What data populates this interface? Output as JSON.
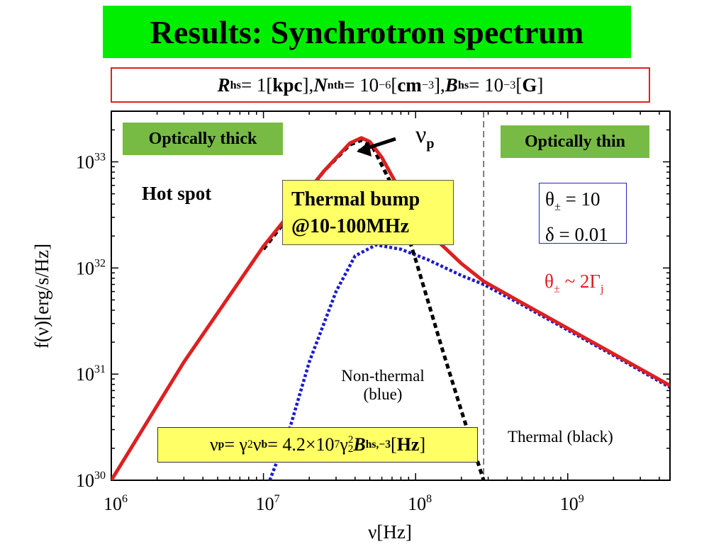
{
  "slide": {
    "title": "Results: Synchrotron spectrum"
  },
  "params": {
    "R_sym": "R",
    "R_sub": "hs",
    "R_val": " = 1[",
    "R_unit": "kpc",
    "R_close": "], ",
    "N_sym": "N",
    "N_sub": "nth",
    "N_val": " = 10",
    "N_exp": "−6",
    "N_unit_open": "[",
    "N_unit": "cm",
    "N_unit_exp": "−3",
    "N_close": "], ",
    "B_sym": "B",
    "B_sub": "hs",
    "B_val": " = 10",
    "B_exp": "−3",
    "B_unit_open": "[",
    "B_unit": "G",
    "B_close": "]"
  },
  "labels": {
    "optically_thick": "Optically thick",
    "optically_thin": "Optically thin",
    "nu_p_symbol": "ν",
    "nu_p_sub": "p",
    "hot_spot": "Hot spot",
    "thermal_bump_line1": "Thermal bump",
    "thermal_bump_line2": "@10-100MHz",
    "theta_line1_sym": "θ",
    "theta_line1_sub": "±",
    "theta_line1_val": " = 10",
    "delta_line": "δ = 0.01",
    "theta_gamma_sym": "θ",
    "theta_gamma_sub": "±",
    "theta_gamma_mid": " ~ 2Γ",
    "theta_gamma_sub2": "j",
    "nonthermal_line1": "Non-thermal",
    "nonthermal_line2": "(blue)",
    "thermal_black": "Thermal (black)"
  },
  "formula": {
    "p1": "ν",
    "p1_sub": "p",
    "p2": " = γ",
    "p2_sup": "2",
    "p3": "ν",
    "p3_sub": "b",
    "p4": " = 4.2×10",
    "p4_sup": "7",
    "p5": " γ",
    "p5_sup": "2",
    "p5_sub": "2",
    "p6": "B",
    "p6_sub": "hs,−3",
    "p7": "[",
    "p8": "Hz",
    "p9": "]"
  },
  "chart_data": {
    "type": "line",
    "xscale": "log",
    "yscale": "log",
    "xlim": [
      1000000,
      4700000000
    ],
    "ylim": [
      1e+30,
      3e+33
    ],
    "xlabel": "ν[Hz]",
    "ylabel": "f(ν)[erg/s/Hz]",
    "xticks": [
      {
        "label_base": "10",
        "label_exp": "6"
      },
      {
        "label_base": "10",
        "label_exp": "7"
      },
      {
        "label_base": "10",
        "label_exp": "8"
      },
      {
        "label_base": "10",
        "label_exp": "9"
      }
    ],
    "xtick_values": [
      1000000,
      10000000,
      100000000,
      1000000000
    ],
    "yticks": [
      {
        "label_base": "10",
        "label_exp": "30"
      },
      {
        "label_base": "10",
        "label_exp": "31"
      },
      {
        "label_base": "10",
        "label_exp": "32"
      },
      {
        "label_base": "10",
        "label_exp": "33"
      }
    ],
    "ytick_values": [
      1e+30,
      1e+31,
      1e+32,
      1e+33
    ],
    "vline_x": 280000000,
    "series": [
      {
        "color": "#dd2020",
        "style": "solid",
        "points": [
          [
            1000000,
            1e+30
          ],
          [
            3000000,
            1.3e+31
          ],
          [
            10000000,
            1.6e+32
          ],
          [
            25000000,
            8.2e+32
          ],
          [
            37000000,
            1.5e+33
          ],
          [
            44000000,
            1.68e+33
          ],
          [
            50000000,
            1.55e+33
          ],
          [
            60000000,
            1.1e+33
          ],
          [
            80000000,
            5.2e+32
          ],
          [
            120000000,
            2.2e+32
          ],
          [
            200000000,
            1.1e+32
          ],
          [
            280000000,
            7.5e+31
          ],
          [
            500000000,
            4.7e+31
          ],
          [
            1000000000,
            2.7e+31
          ],
          [
            2000000000,
            1.55e+31
          ],
          [
            4700000000,
            7.8e+30
          ]
        ]
      },
      {
        "color": "#1a1acc",
        "style": "dotted",
        "points": [
          [
            11000000,
            1e+30
          ],
          [
            15000000,
            3.2e+30
          ],
          [
            20000000,
            1.3e+31
          ],
          [
            30000000,
            6e+31
          ],
          [
            40000000,
            1.3e+32
          ],
          [
            55000000,
            1.65e+32
          ],
          [
            80000000,
            1.5e+32
          ],
          [
            120000000,
            1.2e+32
          ],
          [
            200000000,
            8.5e+31
          ],
          [
            280000000,
            7e+31
          ],
          [
            500000000,
            4.5e+31
          ],
          [
            1000000000,
            2.6e+31
          ],
          [
            2000000000,
            1.5e+31
          ],
          [
            4700000000,
            7.5e+30
          ]
        ]
      },
      {
        "color": "#000000",
        "style": "dashed",
        "points": [
          [
            10000000,
            1.5e+32
          ],
          [
            25000000,
            8.2e+32
          ],
          [
            37000000,
            1.45e+33
          ],
          [
            44000000,
            1.6e+33
          ],
          [
            52000000,
            1.4e+33
          ],
          [
            70000000,
            6e+32
          ],
          [
            100000000,
            1.2e+32
          ],
          [
            150000000,
            1.7e+31
          ],
          [
            200000000,
            4.5e+30
          ],
          [
            280000000,
            1e+30
          ],
          [
            290000000,
            8e+29
          ]
        ]
      }
    ]
  }
}
